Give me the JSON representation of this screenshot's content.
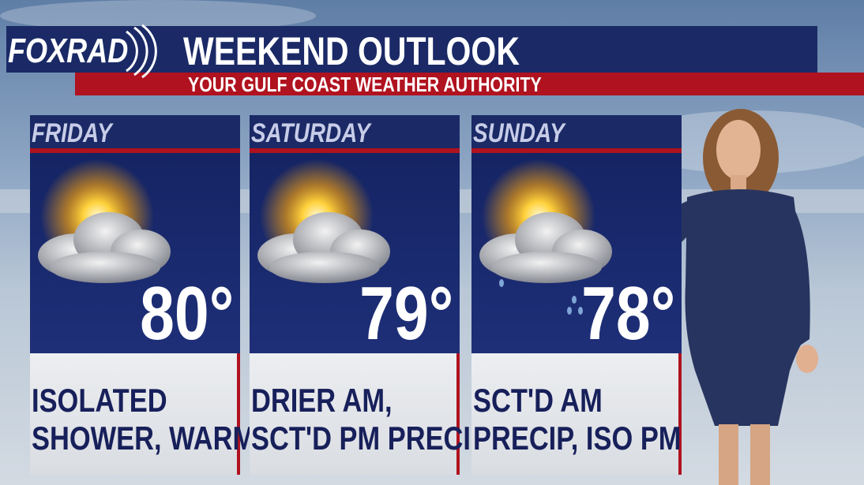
{
  "header": {
    "logo": "FOXRAD",
    "title": "WEEKEND OUTLOOK",
    "subtitle": "YOUR GULF COAST WEATHER AUTHORITY"
  },
  "days": [
    {
      "name": "FRIDAY",
      "temp": "80°",
      "lines": [
        "ISOLATED",
        "SHOWER, WARM"
      ]
    },
    {
      "name": "SATURDAY",
      "temp": "79°",
      "lines": [
        "DRIER AM,",
        "SCT'D PM PRECIP"
      ]
    },
    {
      "name": "SUNDAY",
      "temp": "78°",
      "lines": [
        "SCT'D AM",
        "PRECIP, ISO PM"
      ]
    }
  ]
}
